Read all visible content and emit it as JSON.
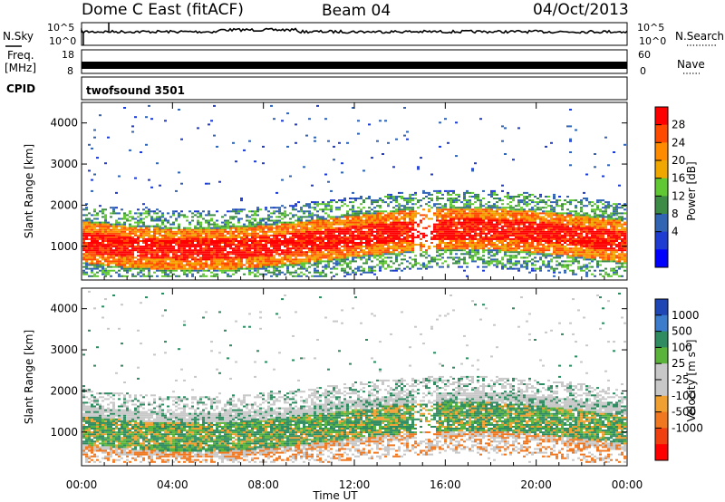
{
  "header": {
    "station": "Dome C East (fitACF)",
    "beam": "Beam 04",
    "date": "04/Oct/2013"
  },
  "top_panels": {
    "nsky": {
      "label": "N.Sky",
      "ticks": [
        "10^5",
        "10^0"
      ]
    },
    "nsearch": {
      "label": "N.Search",
      "ticks": [
        "10^5",
        "10^0"
      ]
    },
    "freq": {
      "label_line1": "Freq.",
      "label_line2": "[MHz]",
      "ticks": [
        "18",
        "8"
      ]
    },
    "nave": {
      "label": "Nave",
      "ticks": [
        "60",
        "0"
      ]
    },
    "cpid": {
      "label": "CPID",
      "value": "twofsound 3501"
    }
  },
  "chart_data": [
    {
      "type": "heatmap",
      "name": "Power",
      "xlabel": "Time UT",
      "ylabel": "Slant Range [km]",
      "x_range_hours": [
        0,
        24
      ],
      "x_ticks": [
        "00:00",
        "04:00",
        "08:00",
        "12:00",
        "16:00",
        "20:00",
        "00:00"
      ],
      "ylim": [
        180,
        4500
      ],
      "y_ticks": [
        1000,
        2000,
        3000,
        4000
      ],
      "colorbar": {
        "label": "Power [dB]",
        "ticks": [
          "28",
          "24",
          "20",
          "16",
          "12",
          "8",
          "4"
        ],
        "colors": [
          "#ff0000",
          "#ff4a00",
          "#ff8c00",
          "#f0a800",
          "#60c832",
          "#3c8c46",
          "#3264b4",
          "#1e3cd2",
          "#0000ff"
        ]
      }
    },
    {
      "type": "heatmap",
      "name": "Velocity",
      "xlabel": "Time UT",
      "ylabel": "Slant Range [km]",
      "x_range_hours": [
        0,
        24
      ],
      "x_ticks": [
        "00:00",
        "04:00",
        "08:00",
        "12:00",
        "16:00",
        "20:00",
        "00:00"
      ],
      "ylim": [
        180,
        4500
      ],
      "y_ticks": [
        1000,
        2000,
        3000,
        4000
      ],
      "colorbar": {
        "label": "Velocity [m s-1]",
        "ticks": [
          "1000",
          "500",
          "100",
          "25",
          "-25",
          "-100",
          "-500",
          "-1000"
        ],
        "colors": [
          "#1e46b4",
          "#3c7ccc",
          "#2e8c60",
          "#5ab43c",
          "#c8c8c8",
          "#c8c8c8",
          "#f0a030",
          "#f07820",
          "#f04010",
          "#ff0000"
        ]
      }
    }
  ],
  "colors": {
    "axis": "#000000",
    "background": "#ffffff"
  }
}
